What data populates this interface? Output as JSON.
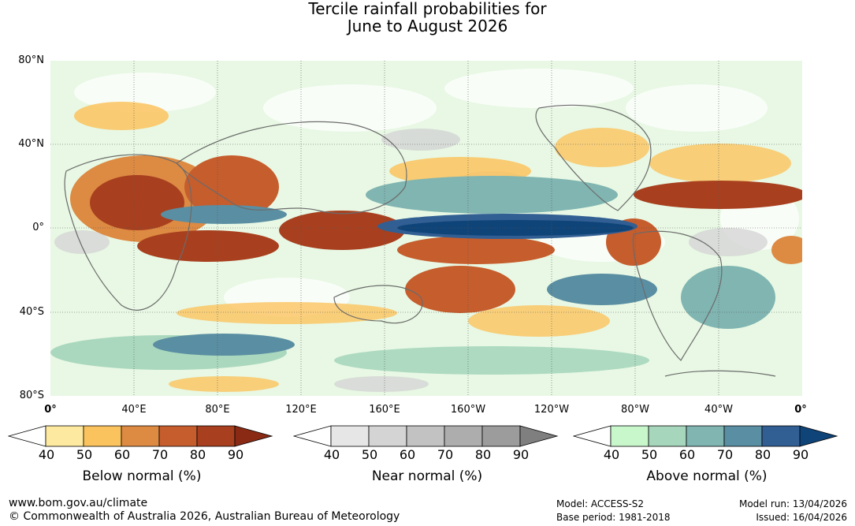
{
  "title": {
    "line1": "Tercile rainfall probabilities for",
    "line2": "June to August 2026"
  },
  "map": {
    "lat_labels": [
      "80°N",
      "40°N",
      "0°",
      "40°S",
      "80°S"
    ],
    "lon_labels": [
      "0°",
      "40°E",
      "80°E",
      "120°E",
      "160°E",
      "160°W",
      "120°W",
      "80°W",
      "40°W",
      "0°"
    ]
  },
  "legends": [
    {
      "title": "Below normal (%)",
      "ticks": [
        "40",
        "50",
        "60",
        "70",
        "80",
        "90"
      ],
      "colors": [
        "#ffffff",
        "#fde9a0",
        "#fbc35e",
        "#dd8a43",
        "#c65d2d",
        "#a8401f",
        "#8a2a14"
      ]
    },
    {
      "title": "Near normal (%)",
      "ticks": [
        "40",
        "50",
        "60",
        "70",
        "80",
        "90"
      ],
      "colors": [
        "#ffffff",
        "#e6e6e6",
        "#d4d4d4",
        "#c2c2c2",
        "#adadad",
        "#9c9c9c",
        "#7f7f7f"
      ]
    },
    {
      "title": "Above normal (%)",
      "ticks": [
        "40",
        "50",
        "60",
        "70",
        "80",
        "90"
      ],
      "colors": [
        "#ffffff",
        "#c9f7cc",
        "#a6d6bc",
        "#80b5b1",
        "#5a8ea2",
        "#325f93",
        "#0f4479"
      ]
    }
  ],
  "footer": {
    "website": "www.bom.gov.au/climate",
    "copyright": "© Commonwealth of Australia 2026, Australian Bureau of Meteorology",
    "model": "Model: ACCESS-S2",
    "base_period": "Base period: 1981-2018",
    "model_run": "Model run: 13/04/2026",
    "issued": "Issued: 16/04/2026"
  }
}
